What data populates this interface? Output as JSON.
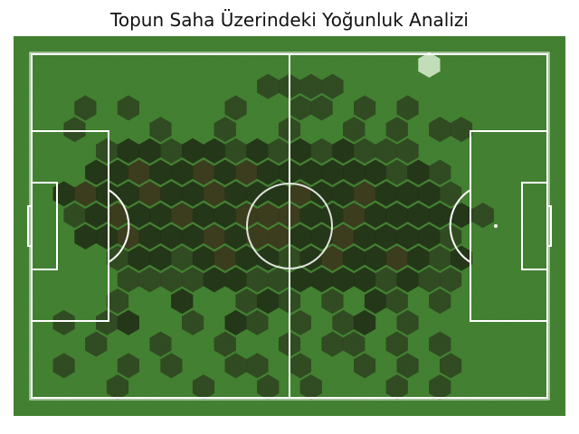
{
  "colors": {
    "grass": "#3f7d2e",
    "line": "#ffffff",
    "hex_low": "#2b3a1d",
    "hex_mid": "#1e2a14",
    "hex_high": "#3a2a18",
    "hex_peak": "#cfe8c8"
  },
  "chart_data": {
    "type": "heatmap",
    "title": "Topun Saha Üzerindeki Yoğunluk Analizi",
    "subtitle": "",
    "xlabel": "",
    "ylabel": "",
    "pitch": {
      "length": 120,
      "width": 80,
      "grid": false,
      "axes_visible": false
    },
    "hexbin": {
      "cols": 24,
      "rows": 16,
      "cells": [
        [
          4,
          10,
          1
        ],
        [
          5,
          10,
          1
        ],
        [
          6,
          10,
          1
        ],
        [
          7,
          10,
          1
        ],
        [
          8,
          10,
          2
        ],
        [
          9,
          10,
          2
        ],
        [
          10,
          10,
          1
        ],
        [
          11,
          10,
          1
        ],
        [
          12,
          10,
          2
        ],
        [
          13,
          10,
          2
        ],
        [
          14,
          10,
          2
        ],
        [
          15,
          10,
          2
        ],
        [
          16,
          10,
          1
        ],
        [
          17,
          10,
          2
        ],
        [
          18,
          10,
          1
        ],
        [
          19,
          10,
          1
        ],
        [
          3,
          9,
          1
        ],
        [
          4,
          9,
          2
        ],
        [
          5,
          9,
          2
        ],
        [
          6,
          9,
          1
        ],
        [
          7,
          9,
          2
        ],
        [
          8,
          9,
          3
        ],
        [
          9,
          9,
          2
        ],
        [
          10,
          9,
          2
        ],
        [
          11,
          9,
          1
        ],
        [
          12,
          9,
          2
        ],
        [
          13,
          9,
          3
        ],
        [
          14,
          9,
          2
        ],
        [
          15,
          9,
          2
        ],
        [
          16,
          9,
          3
        ],
        [
          17,
          9,
          2
        ],
        [
          18,
          9,
          1
        ],
        [
          19,
          9,
          2
        ],
        [
          2,
          8,
          2
        ],
        [
          3,
          8,
          2
        ],
        [
          4,
          8,
          3
        ],
        [
          5,
          8,
          2
        ],
        [
          6,
          8,
          2
        ],
        [
          7,
          8,
          2
        ],
        [
          8,
          8,
          3
        ],
        [
          9,
          8,
          2
        ],
        [
          10,
          8,
          3
        ],
        [
          11,
          8,
          3
        ],
        [
          12,
          8,
          2
        ],
        [
          13,
          8,
          2
        ],
        [
          14,
          8,
          3
        ],
        [
          15,
          8,
          2
        ],
        [
          16,
          8,
          2
        ],
        [
          17,
          8,
          2
        ],
        [
          18,
          8,
          2
        ],
        [
          19,
          8,
          1
        ],
        [
          1,
          7,
          1
        ],
        [
          2,
          7,
          2
        ],
        [
          3,
          7,
          3
        ],
        [
          4,
          7,
          2
        ],
        [
          5,
          7,
          2
        ],
        [
          6,
          7,
          3
        ],
        [
          7,
          7,
          2
        ],
        [
          8,
          7,
          2
        ],
        [
          9,
          7,
          3
        ],
        [
          10,
          7,
          3
        ],
        [
          11,
          7,
          3
        ],
        [
          12,
          7,
          2
        ],
        [
          13,
          7,
          2
        ],
        [
          14,
          7,
          3
        ],
        [
          15,
          7,
          2
        ],
        [
          16,
          7,
          2
        ],
        [
          17,
          7,
          2
        ],
        [
          18,
          7,
          2
        ],
        [
          19,
          7,
          2
        ],
        [
          20,
          7,
          1
        ],
        [
          1,
          6,
          2
        ],
        [
          2,
          6,
          3
        ],
        [
          3,
          6,
          2
        ],
        [
          4,
          6,
          2
        ],
        [
          5,
          6,
          3
        ],
        [
          6,
          6,
          2
        ],
        [
          7,
          6,
          2
        ],
        [
          8,
          6,
          3
        ],
        [
          9,
          6,
          2
        ],
        [
          10,
          6,
          2
        ],
        [
          11,
          6,
          2
        ],
        [
          12,
          6,
          3
        ],
        [
          13,
          6,
          2
        ],
        [
          14,
          6,
          2
        ],
        [
          15,
          6,
          3
        ],
        [
          16,
          6,
          2
        ],
        [
          17,
          6,
          2
        ],
        [
          18,
          6,
          2
        ],
        [
          19,
          6,
          1
        ],
        [
          2,
          5,
          2
        ],
        [
          3,
          5,
          2
        ],
        [
          4,
          5,
          3
        ],
        [
          5,
          5,
          2
        ],
        [
          6,
          5,
          2
        ],
        [
          7,
          5,
          3
        ],
        [
          8,
          5,
          2
        ],
        [
          9,
          5,
          3
        ],
        [
          10,
          5,
          2
        ],
        [
          11,
          5,
          2
        ],
        [
          12,
          5,
          2
        ],
        [
          13,
          5,
          2
        ],
        [
          14,
          5,
          2
        ],
        [
          15,
          5,
          2
        ],
        [
          16,
          5,
          1
        ],
        [
          17,
          5,
          2
        ],
        [
          18,
          5,
          1
        ],
        [
          3,
          4,
          1
        ],
        [
          4,
          4,
          2
        ],
        [
          5,
          4,
          2
        ],
        [
          6,
          4,
          1
        ],
        [
          7,
          4,
          2
        ],
        [
          8,
          4,
          2
        ],
        [
          9,
          4,
          1
        ],
        [
          10,
          4,
          2
        ],
        [
          11,
          4,
          1
        ],
        [
          12,
          4,
          2
        ],
        [
          13,
          4,
          1
        ],
        [
          14,
          4,
          2
        ],
        [
          15,
          4,
          1
        ],
        [
          16,
          4,
          1
        ],
        [
          17,
          4,
          1
        ],
        [
          1,
          3,
          1
        ],
        [
          5,
          3,
          1
        ],
        [
          8,
          3,
          1
        ],
        [
          11,
          3,
          1
        ],
        [
          14,
          3,
          1
        ],
        [
          16,
          3,
          1
        ],
        [
          18,
          3,
          1
        ],
        [
          19,
          3,
          1
        ],
        [
          3,
          11,
          1
        ],
        [
          6,
          11,
          2
        ],
        [
          9,
          11,
          1
        ],
        [
          10,
          11,
          2
        ],
        [
          11,
          11,
          1
        ],
        [
          13,
          11,
          1
        ],
        [
          15,
          11,
          2
        ],
        [
          16,
          11,
          1
        ],
        [
          18,
          11,
          1
        ],
        [
          1,
          12,
          1
        ],
        [
          3,
          12,
          1
        ],
        [
          4,
          12,
          2
        ],
        [
          7,
          12,
          1
        ],
        [
          9,
          12,
          2
        ],
        [
          10,
          12,
          1
        ],
        [
          12,
          12,
          1
        ],
        [
          14,
          12,
          1
        ],
        [
          15,
          12,
          2
        ],
        [
          17,
          12,
          1
        ],
        [
          2,
          13,
          1
        ],
        [
          5,
          13,
          1
        ],
        [
          8,
          13,
          1
        ],
        [
          11,
          13,
          1
        ],
        [
          13,
          13,
          1
        ],
        [
          14,
          13,
          1
        ],
        [
          16,
          13,
          1
        ],
        [
          18,
          13,
          1
        ],
        [
          1,
          14,
          1
        ],
        [
          4,
          14,
          1
        ],
        [
          6,
          14,
          1
        ],
        [
          9,
          14,
          1
        ],
        [
          10,
          14,
          1
        ],
        [
          12,
          14,
          1
        ],
        [
          15,
          14,
          1
        ],
        [
          17,
          14,
          1
        ],
        [
          19,
          14,
          1
        ],
        [
          3,
          15,
          1
        ],
        [
          7,
          15,
          1
        ],
        [
          10,
          15,
          1
        ],
        [
          12,
          15,
          1
        ],
        [
          16,
          15,
          1
        ],
        [
          18,
          15,
          1
        ],
        [
          10,
          1,
          1
        ],
        [
          11,
          1,
          1
        ],
        [
          12,
          1,
          1
        ],
        [
          13,
          1,
          1
        ],
        [
          2,
          2,
          1
        ],
        [
          4,
          2,
          1
        ],
        [
          9,
          2,
          1
        ],
        [
          12,
          2,
          1
        ],
        [
          13,
          2,
          1
        ],
        [
          15,
          2,
          1
        ],
        [
          18,
          0,
          4
        ],
        [
          17,
          2,
          1
        ]
      ]
    }
  }
}
